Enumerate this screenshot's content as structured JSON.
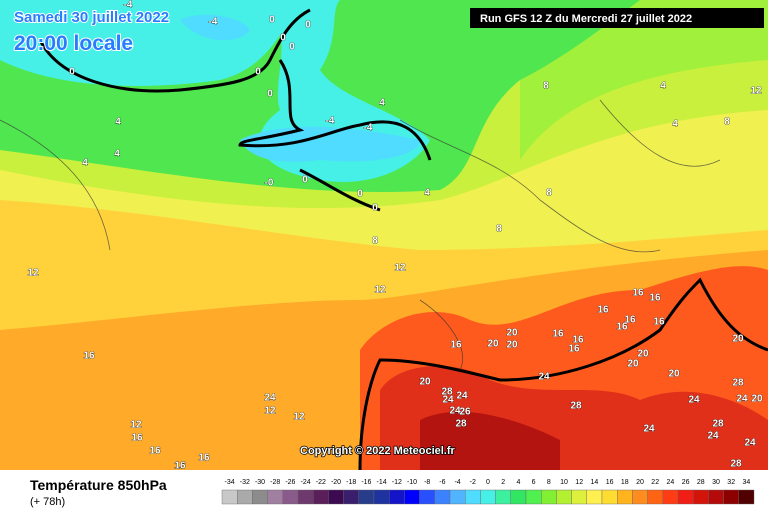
{
  "header": {
    "date": "Samedi 30 juillet 2022",
    "time": "20:00 locale",
    "run": "Run GFS 12 Z du Mercredi 27 juillet 2022"
  },
  "copyright": "Copyright © 2022 Meteociel.fr",
  "footer": {
    "title": "Température 850hPa",
    "lead": "(+ 78h)"
  },
  "legend": {
    "ticks": [
      -34,
      -32,
      -30,
      -28,
      -26,
      -24,
      -22,
      -20,
      -18,
      -16,
      -14,
      -12,
      -10,
      -8,
      -6,
      -4,
      -2,
      0,
      2,
      4,
      6,
      8,
      10,
      12,
      14,
      16,
      18,
      20,
      22,
      24,
      26,
      28,
      30,
      32,
      34
    ],
    "colors": [
      "#c8c8c8",
      "#aaaaaa",
      "#8c8c8c",
      "#a07fa0",
      "#8a5a8a",
      "#6e3a6e",
      "#5a1e5a",
      "#3c0a50",
      "#3a1e6e",
      "#283c8c",
      "#1e32a0",
      "#1414c8",
      "#0000ff",
      "#2850ff",
      "#3c82ff",
      "#50b4ff",
      "#50dcff",
      "#46f0e6",
      "#3cf0a0",
      "#32e664",
      "#50f050",
      "#82f032",
      "#b4f032",
      "#dcf03c",
      "#fff050",
      "#ffdc32",
      "#ffb41e",
      "#ff8c1e",
      "#ff6414",
      "#ff3c14",
      "#f01e14",
      "#d2140a",
      "#b40a0a",
      "#8c0000",
      "#500000"
    ]
  },
  "contour_labels": [
    -4,
    -4,
    0,
    0,
    0,
    0,
    0,
    0,
    0,
    4,
    4,
    4,
    4,
    -4,
    -4,
    0,
    {
      "value": 0,
      "label": "-0"
    },
    0,
    0,
    4,
    8,
    4,
    4,
    8,
    12,
    8,
    8,
    8,
    12,
    12,
    12,
    16,
    16,
    20,
    20,
    20,
    16,
    16,
    16,
    16,
    16,
    16,
    16,
    16,
    16,
    20,
    20,
    20,
    24,
    20,
    20,
    28,
    24,
    24,
    24,
    26,
    28,
    28,
    24,
    28,
    24,
    20,
    28,
    24,
    24,
    24,
    28,
    24,
    12,
    12,
    12,
    16,
    16,
    16,
    16,
    16
  ]
}
